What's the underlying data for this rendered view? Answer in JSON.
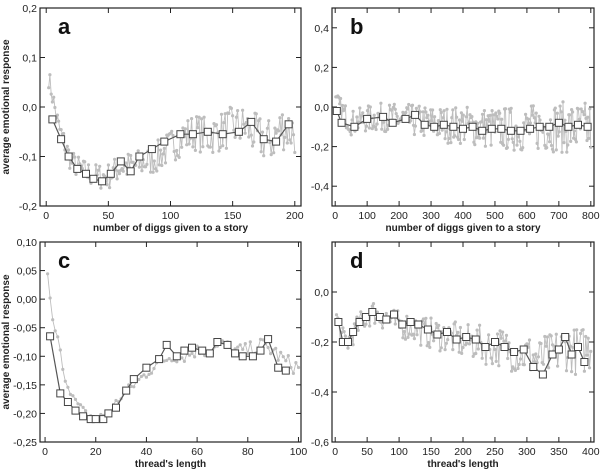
{
  "chart_data": [
    {
      "panel": "a",
      "type": "line",
      "xlabel": "number of diggs given to a story",
      "ylabel": "average emotional response",
      "xlim": [
        -5,
        205
      ],
      "ylim": [
        -0.2,
        0.2
      ],
      "xticks": [
        0,
        50,
        100,
        150,
        200
      ],
      "yticks": [
        -0.2,
        -0.1,
        0.0,
        0.1,
        0.2
      ],
      "tick_format": "comma1",
      "noise_amplitude": 0.05,
      "noise_step": 1,
      "series": [
        {
          "role": "raw",
          "color": "#bdbdbd",
          "x": [
            2,
            10,
            20,
            30,
            40,
            50,
            60,
            70,
            80,
            90,
            100,
            110,
            120,
            130,
            140,
            150,
            160,
            170,
            180,
            190,
            200
          ],
          "y": [
            0.06,
            -0.04,
            -0.11,
            -0.13,
            -0.14,
            -0.14,
            -0.12,
            -0.12,
            -0.11,
            -0.1,
            -0.08,
            -0.06,
            -0.05,
            -0.06,
            -0.05,
            -0.04,
            -0.04,
            -0.06,
            -0.07,
            -0.04,
            -0.05
          ]
        },
        {
          "role": "binned",
          "color": "#555555",
          "x": [
            5,
            12,
            18,
            25,
            32,
            38,
            45,
            52,
            60,
            68,
            75,
            85,
            95,
            108,
            118,
            130,
            142,
            155,
            165,
            175,
            185,
            195
          ],
          "y": [
            -0.025,
            -0.065,
            -0.1,
            -0.125,
            -0.135,
            -0.145,
            -0.15,
            -0.135,
            -0.11,
            -0.13,
            -0.1,
            -0.085,
            -0.07,
            -0.055,
            -0.055,
            -0.05,
            -0.055,
            -0.05,
            -0.03,
            -0.065,
            -0.07,
            -0.035
          ]
        }
      ]
    },
    {
      "panel": "b",
      "type": "line",
      "xlabel": "number of diggs given to a story",
      "ylabel": "",
      "xlim": [
        -10,
        810
      ],
      "ylim": [
        -0.5,
        0.5
      ],
      "xticks": [
        0,
        100,
        200,
        300,
        400,
        500,
        600,
        700,
        800
      ],
      "yticks": [
        -0.4,
        -0.2,
        0.0,
        0.2,
        0.4
      ],
      "tick_format": "comma1",
      "noise_amplitude": 0.14,
      "noise_step": 3,
      "series": [
        {
          "role": "raw",
          "color": "#bdbdbd",
          "x": [
            2,
            50,
            100,
            150,
            200,
            250,
            300,
            350,
            400,
            450,
            500,
            550,
            600,
            650,
            700,
            750,
            800
          ],
          "y": [
            0.02,
            -0.08,
            -0.06,
            -0.05,
            -0.06,
            -0.07,
            -0.08,
            -0.09,
            -0.09,
            -0.1,
            -0.11,
            -0.11,
            -0.11,
            -0.1,
            -0.1,
            -0.11,
            -0.11
          ]
        },
        {
          "role": "binned",
          "color": "#555555",
          "x": [
            5,
            20,
            60,
            100,
            150,
            180,
            220,
            250,
            280,
            310,
            340,
            370,
            400,
            430,
            460,
            490,
            520,
            550,
            580,
            610,
            640,
            670,
            700,
            730,
            760,
            790
          ],
          "y": [
            -0.02,
            -0.08,
            -0.1,
            -0.06,
            -0.05,
            -0.08,
            -0.06,
            -0.04,
            -0.09,
            -0.1,
            -0.09,
            -0.1,
            -0.11,
            -0.1,
            -0.12,
            -0.11,
            -0.11,
            -0.12,
            -0.12,
            -0.11,
            -0.1,
            -0.1,
            -0.08,
            -0.1,
            -0.09,
            -0.1
          ]
        }
      ]
    },
    {
      "panel": "c",
      "type": "line",
      "xlabel": "thread's length",
      "ylabel": "average emotional response",
      "xlim": [
        -2,
        101
      ],
      "ylim": [
        -0.25,
        0.1
      ],
      "xticks": [
        0,
        20,
        40,
        60,
        80,
        100
      ],
      "yticks": [
        -0.25,
        -0.2,
        -0.15,
        -0.1,
        -0.05,
        0.0,
        0.05,
        0.1
      ],
      "tick_format": "comma2",
      "noise_amplitude": 0.015,
      "noise_step": 1,
      "series": [
        {
          "role": "raw",
          "color": "#bdbdbd",
          "x": [
            1,
            3,
            5,
            8,
            12,
            16,
            20,
            25,
            30,
            35,
            40,
            45,
            50,
            55,
            60,
            65,
            70,
            75,
            80,
            85,
            90,
            95,
            100
          ],
          "y": [
            0.04,
            -0.04,
            -0.07,
            -0.14,
            -0.18,
            -0.2,
            -0.21,
            -0.2,
            -0.17,
            -0.15,
            -0.13,
            -0.11,
            -0.1,
            -0.1,
            -0.09,
            -0.09,
            -0.08,
            -0.09,
            -0.09,
            -0.08,
            -0.09,
            -0.11,
            -0.12
          ]
        },
        {
          "role": "binned",
          "color": "#555555",
          "x": [
            2,
            6,
            9,
            12,
            15,
            18,
            20,
            23,
            25,
            28,
            32,
            35,
            40,
            45,
            48,
            52,
            55,
            58,
            62,
            65,
            68,
            72,
            75,
            78,
            82,
            85,
            88,
            92,
            95
          ],
          "y": [
            -0.065,
            -0.165,
            -0.18,
            -0.195,
            -0.205,
            -0.21,
            -0.21,
            -0.21,
            -0.2,
            -0.19,
            -0.16,
            -0.14,
            -0.12,
            -0.105,
            -0.08,
            -0.1,
            -0.09,
            -0.085,
            -0.09,
            -0.095,
            -0.075,
            -0.08,
            -0.095,
            -0.1,
            -0.1,
            -0.09,
            -0.07,
            -0.12,
            -0.125
          ]
        }
      ]
    },
    {
      "panel": "d",
      "type": "line",
      "xlabel": "thread's length",
      "ylabel": "",
      "xlim": [
        -5,
        405
      ],
      "ylim": [
        -0.6,
        0.2
      ],
      "xticks": [
        0,
        50,
        100,
        150,
        200,
        250,
        300,
        350,
        400
      ],
      "yticks": [
        -0.6,
        -0.4,
        -0.2,
        0.0
      ],
      "tick_format": "comma1",
      "noise_amplitude": 0.1,
      "noise_step": 2,
      "series": [
        {
          "role": "raw",
          "color": "#bdbdbd",
          "x": [
            2,
            10,
            20,
            30,
            40,
            50,
            60,
            70,
            80,
            90,
            100,
            120,
            140,
            160,
            180,
            200,
            220,
            240,
            260,
            280,
            300,
            320,
            340,
            360,
            380,
            400
          ],
          "y": [
            -0.1,
            -0.18,
            -0.2,
            -0.16,
            -0.12,
            -0.1,
            -0.08,
            -0.1,
            -0.1,
            -0.12,
            -0.13,
            -0.14,
            -0.16,
            -0.17,
            -0.18,
            -0.2,
            -0.2,
            -0.22,
            -0.22,
            -0.24,
            -0.25,
            -0.27,
            -0.25,
            -0.22,
            -0.24,
            -0.22
          ]
        },
        {
          "role": "binned",
          "color": "#555555",
          "x": [
            5,
            12,
            20,
            28,
            38,
            48,
            58,
            70,
            80,
            92,
            105,
            118,
            130,
            145,
            160,
            175,
            190,
            205,
            220,
            235,
            250,
            265,
            280,
            295,
            310,
            325,
            340,
            350,
            360,
            370,
            380,
            390
          ],
          "y": [
            -0.12,
            -0.2,
            -0.2,
            -0.16,
            -0.12,
            -0.1,
            -0.08,
            -0.1,
            -0.11,
            -0.09,
            -0.13,
            -0.12,
            -0.13,
            -0.15,
            -0.17,
            -0.16,
            -0.19,
            -0.18,
            -0.19,
            -0.22,
            -0.2,
            -0.22,
            -0.24,
            -0.23,
            -0.3,
            -0.33,
            -0.25,
            -0.23,
            -0.18,
            -0.25,
            -0.22,
            -0.28
          ]
        }
      ]
    }
  ]
}
